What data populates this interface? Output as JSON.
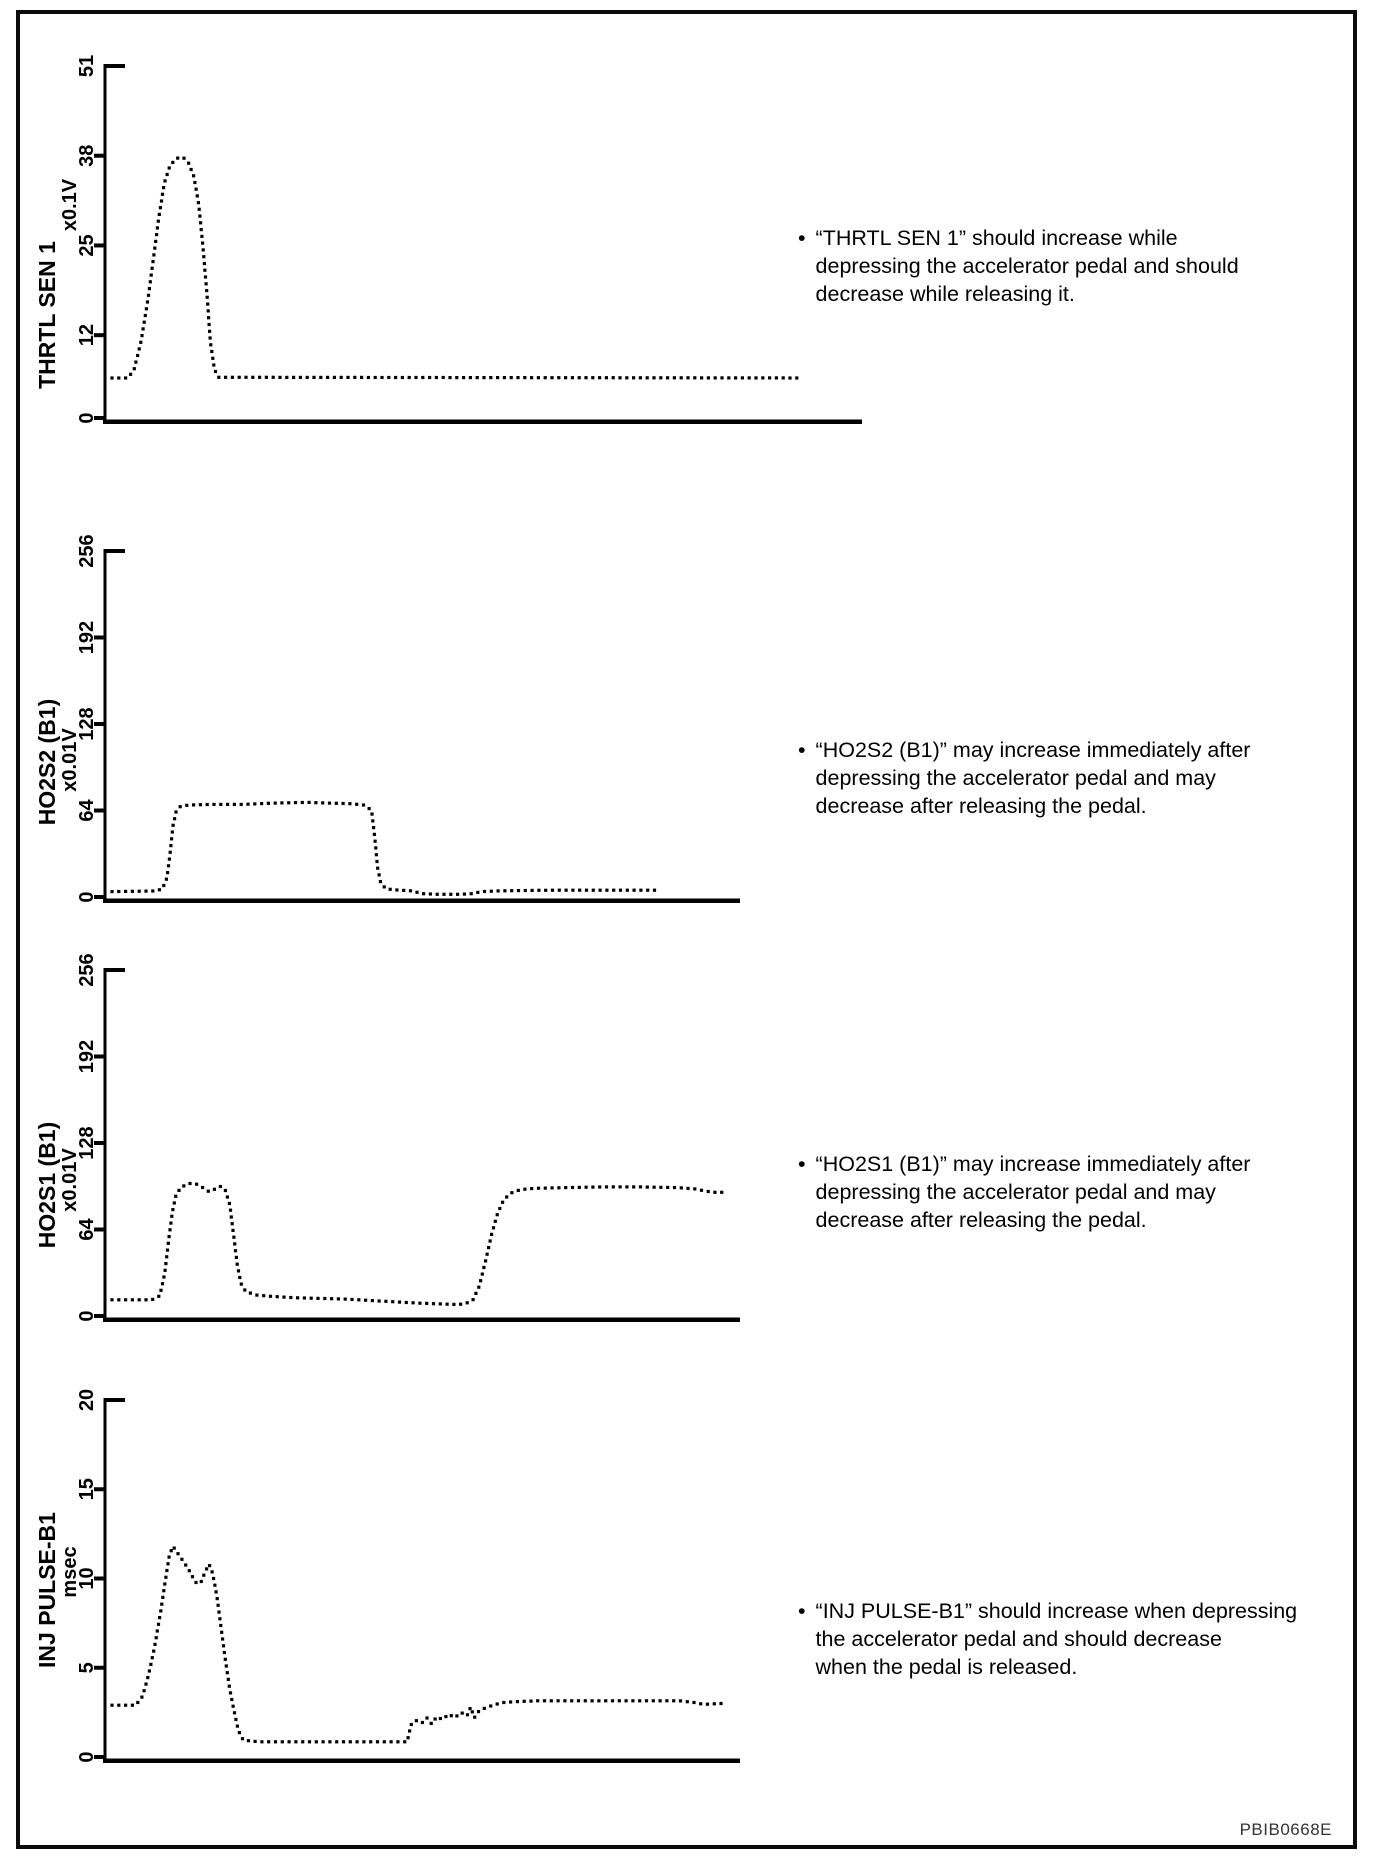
{
  "page": {
    "figure_code": "PBIB0668E"
  },
  "chart_data": [
    {
      "type": "scatter",
      "title": "THRTL SEN 1",
      "ylabel": "x0.1V",
      "xlabel": "",
      "ylim": [
        0,
        51
      ],
      "yticks": [
        0,
        12,
        25,
        38,
        51
      ],
      "x_units": "time (unlabeled, 0-100 arbitrary)",
      "legend": "none",
      "grid": false,
      "points": [
        [
          0,
          5.8
        ],
        [
          2.3,
          5.8
        ],
        [
          3.2,
          7
        ],
        [
          4.2,
          11
        ],
        [
          5.2,
          17
        ],
        [
          6,
          23
        ],
        [
          6.8,
          29
        ],
        [
          7.6,
          34
        ],
        [
          8.4,
          36.5
        ],
        [
          9.3,
          37.6
        ],
        [
          10.3,
          37.8
        ],
        [
          11.1,
          37
        ],
        [
          11.9,
          35
        ],
        [
          12.6,
          31
        ],
        [
          13.2,
          25
        ],
        [
          13.8,
          18
        ],
        [
          14.3,
          11
        ],
        [
          14.9,
          7
        ],
        [
          15.5,
          5.9
        ],
        [
          100,
          5.8
        ]
      ],
      "note_lines": [
        "“THRTL SEN 1” should increase while",
        "depressing the accelerator pedal and should",
        "decrease while releasing it."
      ]
    },
    {
      "type": "scatter",
      "title": "HO2S2 (B1)",
      "ylabel": "x0.01V",
      "xlabel": "",
      "ylim": [
        0,
        256
      ],
      "yticks": [
        0,
        64,
        128,
        192,
        256
      ],
      "x_units": "time (unlabeled, 0-100 arbitrary)",
      "legend": "none",
      "grid": false,
      "points": [
        [
          0,
          4
        ],
        [
          8,
          4.5
        ],
        [
          9.3,
          6
        ],
        [
          10.1,
          14
        ],
        [
          10.7,
          32
        ],
        [
          11.2,
          52
        ],
        [
          11.8,
          63
        ],
        [
          12.6,
          67
        ],
        [
          14,
          68
        ],
        [
          18,
          68.5
        ],
        [
          24,
          68.5
        ],
        [
          30,
          69.5
        ],
        [
          36,
          70
        ],
        [
          40,
          69.5
        ],
        [
          44,
          69
        ],
        [
          46.5,
          68
        ],
        [
          47.8,
          64
        ],
        [
          48.4,
          44
        ],
        [
          48.9,
          22
        ],
        [
          49.5,
          10
        ],
        [
          50.5,
          6
        ],
        [
          53,
          5
        ],
        [
          55.5,
          4.5
        ],
        [
          56.8,
          2.5
        ],
        [
          60,
          2
        ],
        [
          64,
          2
        ],
        [
          66.5,
          2.5
        ],
        [
          68,
          4
        ],
        [
          71,
          4.5
        ],
        [
          80,
          5
        ],
        [
          90,
          5
        ],
        [
          100,
          5
        ]
      ],
      "note_lines": [
        "“HO2S2 (B1)” may increase immediately after",
        "depressing the accelerator pedal and may",
        "decrease after releasing the pedal."
      ]
    },
    {
      "type": "scatter",
      "title": "HO2S1 (B1)",
      "ylabel": "x0.01V",
      "xlabel": "",
      "ylim": [
        0,
        256
      ],
      "yticks": [
        0,
        64,
        128,
        192,
        256
      ],
      "x_units": "time (unlabeled, 0-100 arbitrary)",
      "legend": "none",
      "grid": false,
      "points": [
        [
          0,
          12
        ],
        [
          6.5,
          12
        ],
        [
          7.8,
          15
        ],
        [
          8.6,
          32
        ],
        [
          9.2,
          55
        ],
        [
          9.8,
          76
        ],
        [
          10.4,
          89
        ],
        [
          11.2,
          95
        ],
        [
          12.4,
          98
        ],
        [
          13.6,
          98
        ],
        [
          14.8,
          95
        ],
        [
          15.8,
          92
        ],
        [
          16.8,
          94
        ],
        [
          17.6,
          96
        ],
        [
          18.4,
          94
        ],
        [
          19.2,
          82
        ],
        [
          19.8,
          60
        ],
        [
          20.4,
          38
        ],
        [
          21,
          24
        ],
        [
          21.8,
          18
        ],
        [
          23.5,
          15.5
        ],
        [
          26,
          14.5
        ],
        [
          30,
          13.5
        ],
        [
          34,
          13
        ],
        [
          38,
          12.5
        ],
        [
          42,
          11.5
        ],
        [
          46,
          10.5
        ],
        [
          50,
          9.5
        ],
        [
          53,
          9
        ],
        [
          56,
          8.5
        ],
        [
          57.5,
          9
        ],
        [
          58.8,
          12
        ],
        [
          59.8,
          22
        ],
        [
          60.8,
          40
        ],
        [
          61.8,
          60
        ],
        [
          62.8,
          76
        ],
        [
          63.8,
          86
        ],
        [
          65,
          91
        ],
        [
          66.5,
          93.5
        ],
        [
          69,
          94.5
        ],
        [
          74,
          95
        ],
        [
          80,
          95.5
        ],
        [
          86,
          95.5
        ],
        [
          92,
          95
        ],
        [
          95,
          94
        ],
        [
          96.5,
          92.5
        ],
        [
          98,
          91.5
        ],
        [
          100,
          91.5
        ]
      ],
      "note_lines": [
        "“HO2S1 (B1)” may increase immediately after",
        "depressing the accelerator pedal and may",
        "decrease after releasing the pedal."
      ]
    },
    {
      "type": "scatter",
      "title": "INJ PULSE-B1",
      "ylabel": "msec",
      "xlabel": "",
      "ylim": [
        0,
        20
      ],
      "yticks": [
        0,
        5,
        10,
        15,
        20
      ],
      "x_units": "time (unlabeled, 0-100 arbitrary)",
      "legend": "none",
      "grid": false,
      "points": [
        [
          0,
          2.9
        ],
        [
          3.9,
          2.9
        ],
        [
          5,
          3.4
        ],
        [
          6,
          4.6
        ],
        [
          7,
          6.2
        ],
        [
          8,
          8.2
        ],
        [
          8.8,
          10
        ],
        [
          9.4,
          11.3
        ],
        [
          10,
          11.8
        ],
        [
          10.8,
          11.4
        ],
        [
          11.6,
          11
        ],
        [
          12.4,
          10.6
        ],
        [
          13.2,
          10.1
        ],
        [
          13.9,
          9.7
        ],
        [
          14.6,
          9.8
        ],
        [
          15.3,
          10.4
        ],
        [
          15.9,
          10.8
        ],
        [
          16.5,
          10.3
        ],
        [
          17.2,
          9
        ],
        [
          17.9,
          7.2
        ],
        [
          18.6,
          5.4
        ],
        [
          19.3,
          3.8
        ],
        [
          20,
          2.6
        ],
        [
          20.7,
          1.5
        ],
        [
          21.5,
          0.95
        ],
        [
          24,
          0.85
        ],
        [
          30,
          0.85
        ],
        [
          36,
          0.85
        ],
        [
          42,
          0.85
        ],
        [
          48.4,
          0.85
        ],
        [
          49,
          1.8
        ],
        [
          49.8,
          2.05
        ],
        [
          50.8,
          1.9
        ],
        [
          51.6,
          2.2
        ],
        [
          52.4,
          1.85
        ],
        [
          53.2,
          2.25
        ],
        [
          54.2,
          2.1
        ],
        [
          55.2,
          2.4
        ],
        [
          56.2,
          2.2
        ],
        [
          57.2,
          2.5
        ],
        [
          58.2,
          2.3
        ],
        [
          58.8,
          2.8
        ],
        [
          59.4,
          2.2
        ],
        [
          60.2,
          2.6
        ],
        [
          61.2,
          2.75
        ],
        [
          62.4,
          2.9
        ],
        [
          64,
          3.05
        ],
        [
          66,
          3.1
        ],
        [
          70,
          3.15
        ],
        [
          76,
          3.15
        ],
        [
          82,
          3.15
        ],
        [
          88,
          3.15
        ],
        [
          93,
          3.15
        ],
        [
          95.5,
          3.05
        ],
        [
          97,
          2.95
        ],
        [
          100,
          3
        ]
      ],
      "note_lines": [
        "“INJ PULSE-B1” should increase when depressing",
        "the accelerator pedal and should decrease",
        "when the pedal is released."
      ]
    }
  ]
}
